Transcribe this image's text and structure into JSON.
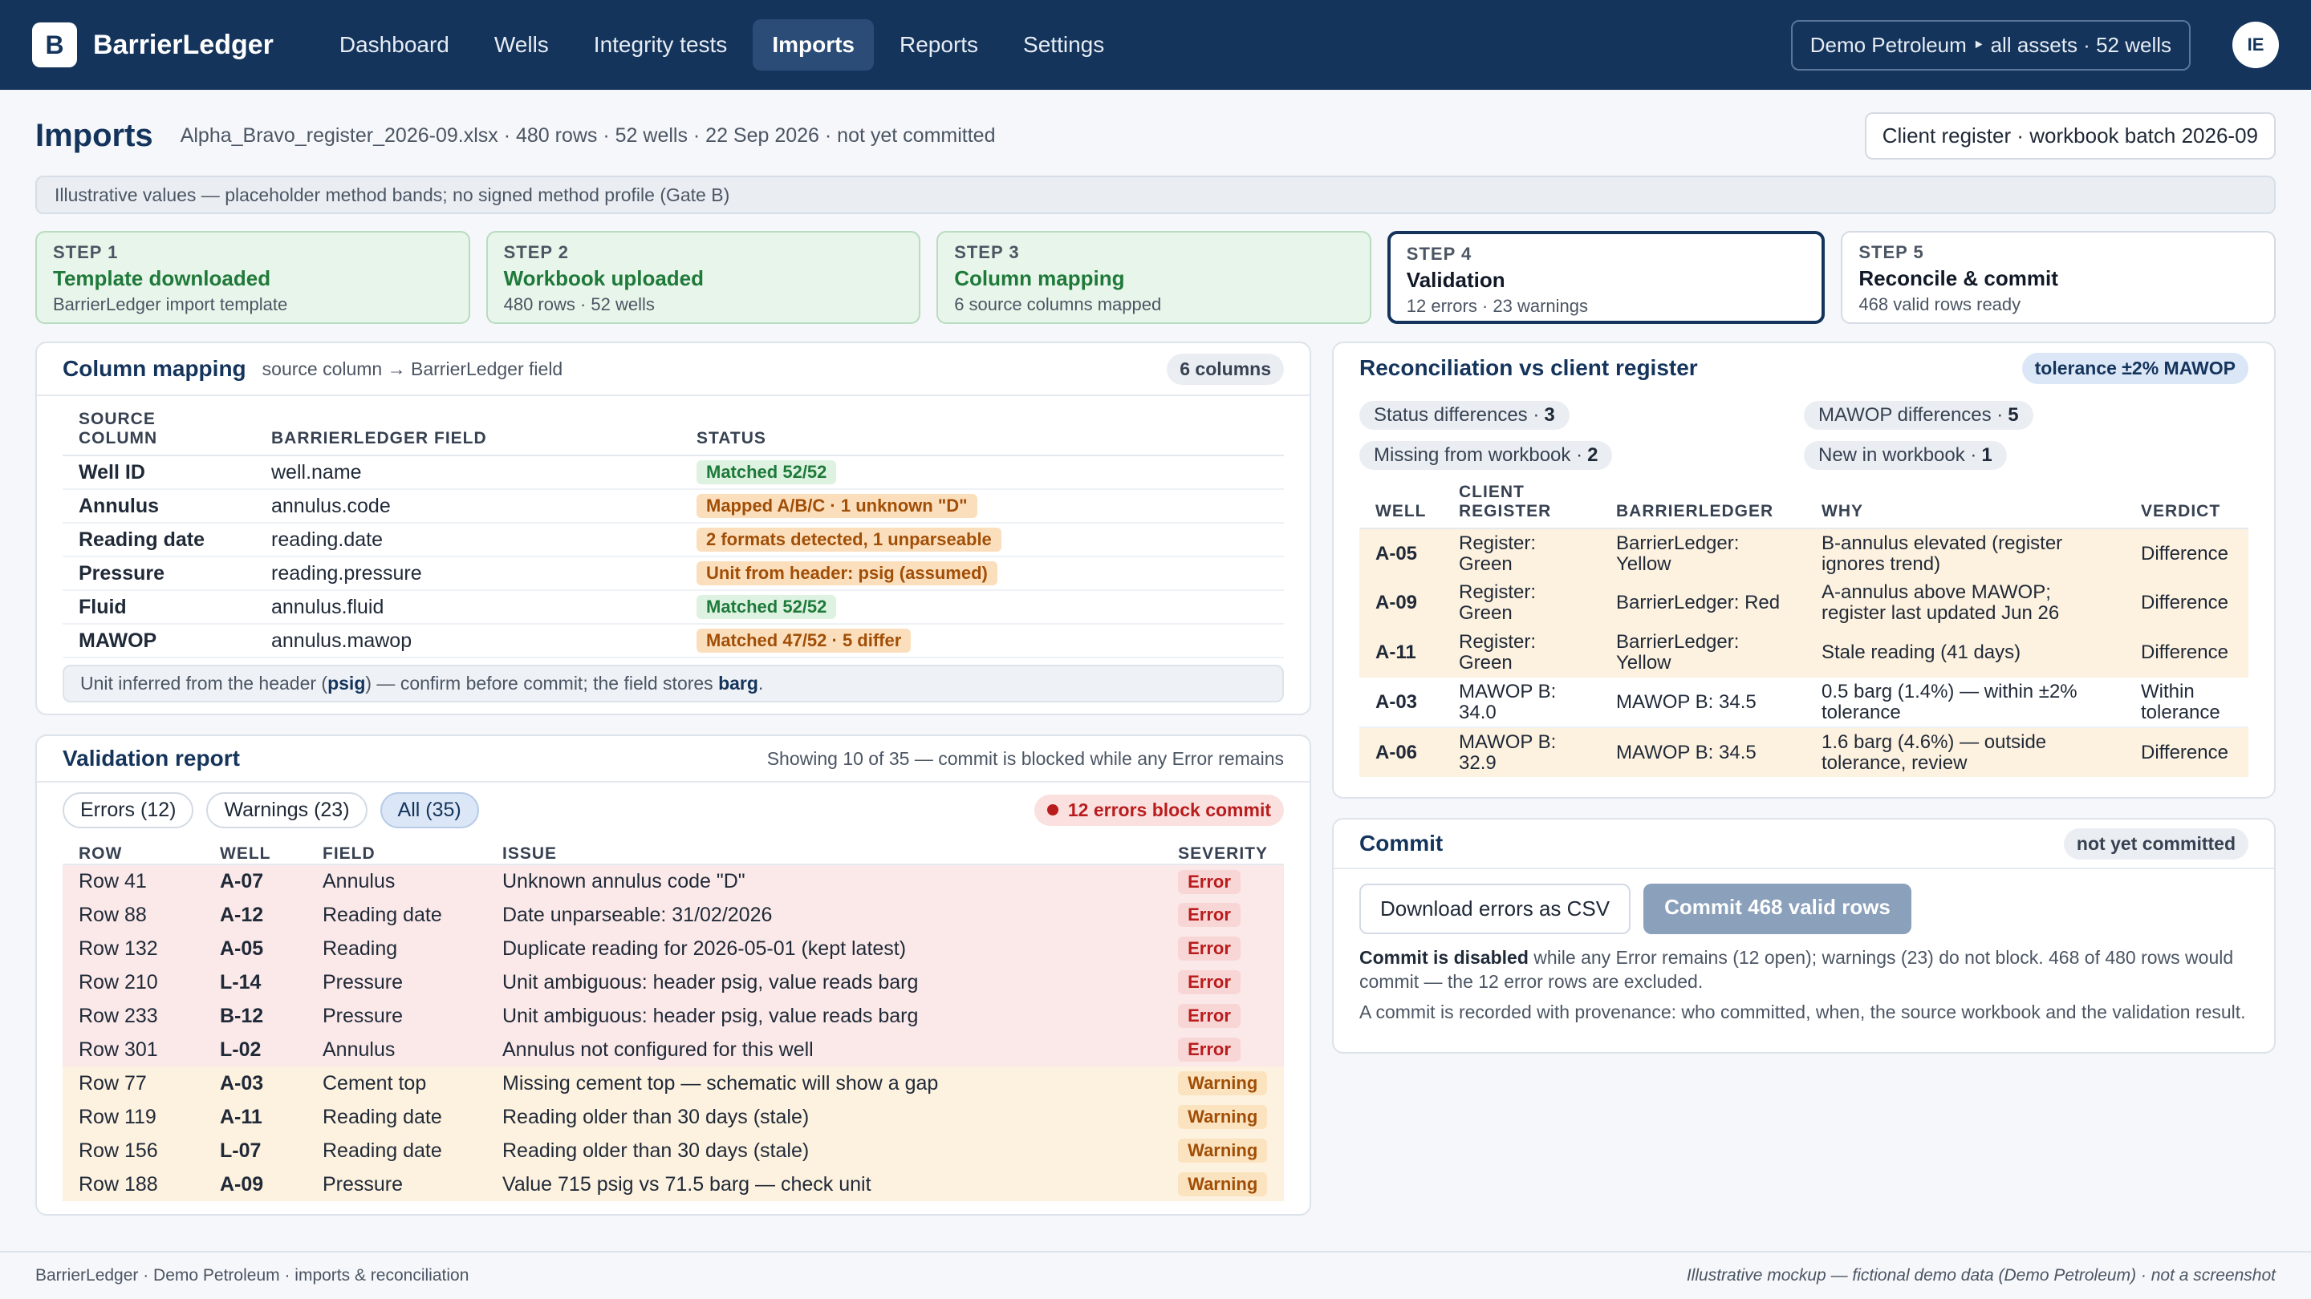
{
  "nav": {
    "logo_letter": "B",
    "app_name": "BarrierLedger",
    "items": [
      "Dashboard",
      "Wells",
      "Integrity tests",
      "Imports",
      "Reports",
      "Settings"
    ],
    "active": "Imports",
    "tenant": "Demo Petroleum ‣ all assets · 52 wells",
    "avatar": "IE"
  },
  "header": {
    "title": "Imports",
    "subtitle": "Alpha_Bravo_register_2026-09.xlsx · 480 rows · 52 wells · 22 Sep 2026 · not yet committed",
    "batch": "Client register · workbook batch 2026-09"
  },
  "banner": "Illustrative values — placeholder method bands; no signed method profile (Gate B)",
  "steps": [
    {
      "num": "STEP 1",
      "title": "Template downloaded",
      "desc": "BarrierLedger import template",
      "state": "done"
    },
    {
      "num": "STEP 2",
      "title": "Workbook uploaded",
      "desc": "480 rows · 52 wells",
      "state": "done"
    },
    {
      "num": "STEP 3",
      "title": "Column mapping",
      "desc": "6 source columns mapped",
      "state": "done"
    },
    {
      "num": "STEP 4",
      "title": "Validation",
      "desc": "12 errors · 23 warnings",
      "state": "current"
    },
    {
      "num": "STEP 5",
      "title": "Reconcile & commit",
      "desc": "468 valid rows ready",
      "state": "future"
    }
  ],
  "column_mapping": {
    "title": "Column mapping",
    "subtitle": "source column → BarrierLedger field",
    "count": "6 columns",
    "headers": [
      "SOURCE COLUMN",
      "BARRIERLEDGER FIELD",
      "STATUS"
    ],
    "rows": [
      {
        "source": "Well ID",
        "field": "well.name",
        "status": "Matched 52/52",
        "tone": "ok"
      },
      {
        "source": "Annulus",
        "field": "annulus.code",
        "status": "Mapped A/B/C · 1 unknown \"D\"",
        "tone": "warn"
      },
      {
        "source": "Reading date",
        "field": "reading.date",
        "status": "2 formats detected, 1 unparseable",
        "tone": "warn"
      },
      {
        "source": "Pressure",
        "field": "reading.pressure",
        "status": "Unit from header: psig (assumed)",
        "tone": "warn"
      },
      {
        "source": "Fluid",
        "field": "annulus.fluid",
        "status": "Matched 52/52",
        "tone": "ok"
      },
      {
        "source": "MAWOP",
        "field": "annulus.mawop",
        "status": "Matched 47/52 · 5 differ",
        "tone": "warn"
      }
    ],
    "note_pre": "Unit inferred from the header (",
    "note_unit1": "psig",
    "note_mid": ") — confirm before commit; the field stores ",
    "note_unit2": "barg",
    "note_end": "."
  },
  "validation": {
    "title": "Validation report",
    "subtitle": "Showing 10 of 35 — commit is blocked while any Error remains",
    "filters": [
      "Errors (12)",
      "Warnings (23)",
      "All (35)"
    ],
    "active_filter": "All (35)",
    "block_pill": "12 errors block commit",
    "headers": [
      "ROW",
      "WELL",
      "FIELD",
      "ISSUE",
      "SEVERITY"
    ],
    "rows": [
      {
        "row": "Row 41",
        "well": "A-07",
        "field": "Annulus",
        "issue": "Unknown annulus code \"D\"",
        "severity": "Error"
      },
      {
        "row": "Row 88",
        "well": "A-12",
        "field": "Reading date",
        "issue": "Date unparseable: 31/02/2026",
        "severity": "Error"
      },
      {
        "row": "Row 132",
        "well": "A-05",
        "field": "Reading",
        "issue": "Duplicate reading for 2026-05-01 (kept latest)",
        "severity": "Error"
      },
      {
        "row": "Row 210",
        "well": "L-14",
        "field": "Pressure",
        "issue": "Unit ambiguous: header psig, value reads barg",
        "severity": "Error"
      },
      {
        "row": "Row 233",
        "well": "B-12",
        "field": "Pressure",
        "issue": "Unit ambiguous: header psig, value reads barg",
        "severity": "Error"
      },
      {
        "row": "Row 301",
        "well": "L-02",
        "field": "Annulus",
        "issue": "Annulus not configured for this well",
        "severity": "Error"
      },
      {
        "row": "Row 77",
        "well": "A-03",
        "field": "Cement top",
        "issue": "Missing cement top — schematic will show a gap",
        "severity": "Warning"
      },
      {
        "row": "Row 119",
        "well": "A-11",
        "field": "Reading date",
        "issue": "Reading older than 30 days (stale)",
        "severity": "Warning"
      },
      {
        "row": "Row 156",
        "well": "L-07",
        "field": "Reading date",
        "issue": "Reading older than 30 days (stale)",
        "severity": "Warning"
      },
      {
        "row": "Row 188",
        "well": "A-09",
        "field": "Pressure",
        "issue": "Value 715 psig vs 71.5 barg — check unit",
        "severity": "Warning"
      }
    ]
  },
  "reconciliation": {
    "title": "Reconciliation vs client register",
    "tolerance": "tolerance ±2% MAWOP",
    "chips": [
      {
        "label": "Status differences ·",
        "count": "3"
      },
      {
        "label": "MAWOP differences ·",
        "count": "5"
      },
      {
        "label": "Missing from workbook ·",
        "count": "2"
      },
      {
        "label": "New in workbook ·",
        "count": "1"
      }
    ],
    "headers": [
      "WELL",
      "CLIENT REGISTER",
      "BARRIERLEDGER",
      "WHY",
      "VERDICT"
    ],
    "rows": [
      {
        "well": "A-05",
        "client": "Register: Green",
        "bl": "BarrierLedger: Yellow",
        "why": "B-annulus elevated (register ignores trend)",
        "verdict": "Difference",
        "tone": "diff"
      },
      {
        "well": "A-09",
        "client": "Register: Green",
        "bl": "BarrierLedger: Red",
        "why": "A-annulus above MAWOP; register last updated Jun 26",
        "verdict": "Difference",
        "tone": "diff"
      },
      {
        "well": "A-11",
        "client": "Register: Green",
        "bl": "BarrierLedger: Yellow",
        "why": "Stale reading (41 days)",
        "verdict": "Difference",
        "tone": "diff"
      },
      {
        "well": "A-03",
        "client": "MAWOP B: 34.0",
        "bl": "MAWOP B: 34.5",
        "why": "0.5 barg (1.4%) — within ±2% tolerance",
        "verdict": "Within tolerance",
        "tone": "ok"
      },
      {
        "well": "A-06",
        "client": "MAWOP B: 32.9",
        "bl": "MAWOP B: 34.5",
        "why": "1.6 barg (4.6%) — outside tolerance, review",
        "verdict": "Difference",
        "tone": "diff"
      }
    ]
  },
  "commit": {
    "title": "Commit",
    "status": "not yet committed",
    "download_label": "Download errors as CSV",
    "commit_label": "Commit 468 valid rows",
    "text1_bold": "Commit is disabled",
    "text1_rest": " while any Error remains (12 open); warnings (23) do not block. 468 of 480 rows would commit — the 12 error rows are excluded.",
    "text2": "A commit is recorded with provenance: who committed, when, the source workbook and the validation result."
  },
  "footer": {
    "left": "BarrierLedger · Demo Petroleum · imports & reconciliation",
    "right": "Illustrative mockup — fictional demo data (Demo Petroleum) · not a screenshot"
  },
  "colors": {
    "nav_bg": "#14345c",
    "ok": "#1f7a3a",
    "warn": "#a14e06",
    "error": "#b91c1c"
  }
}
